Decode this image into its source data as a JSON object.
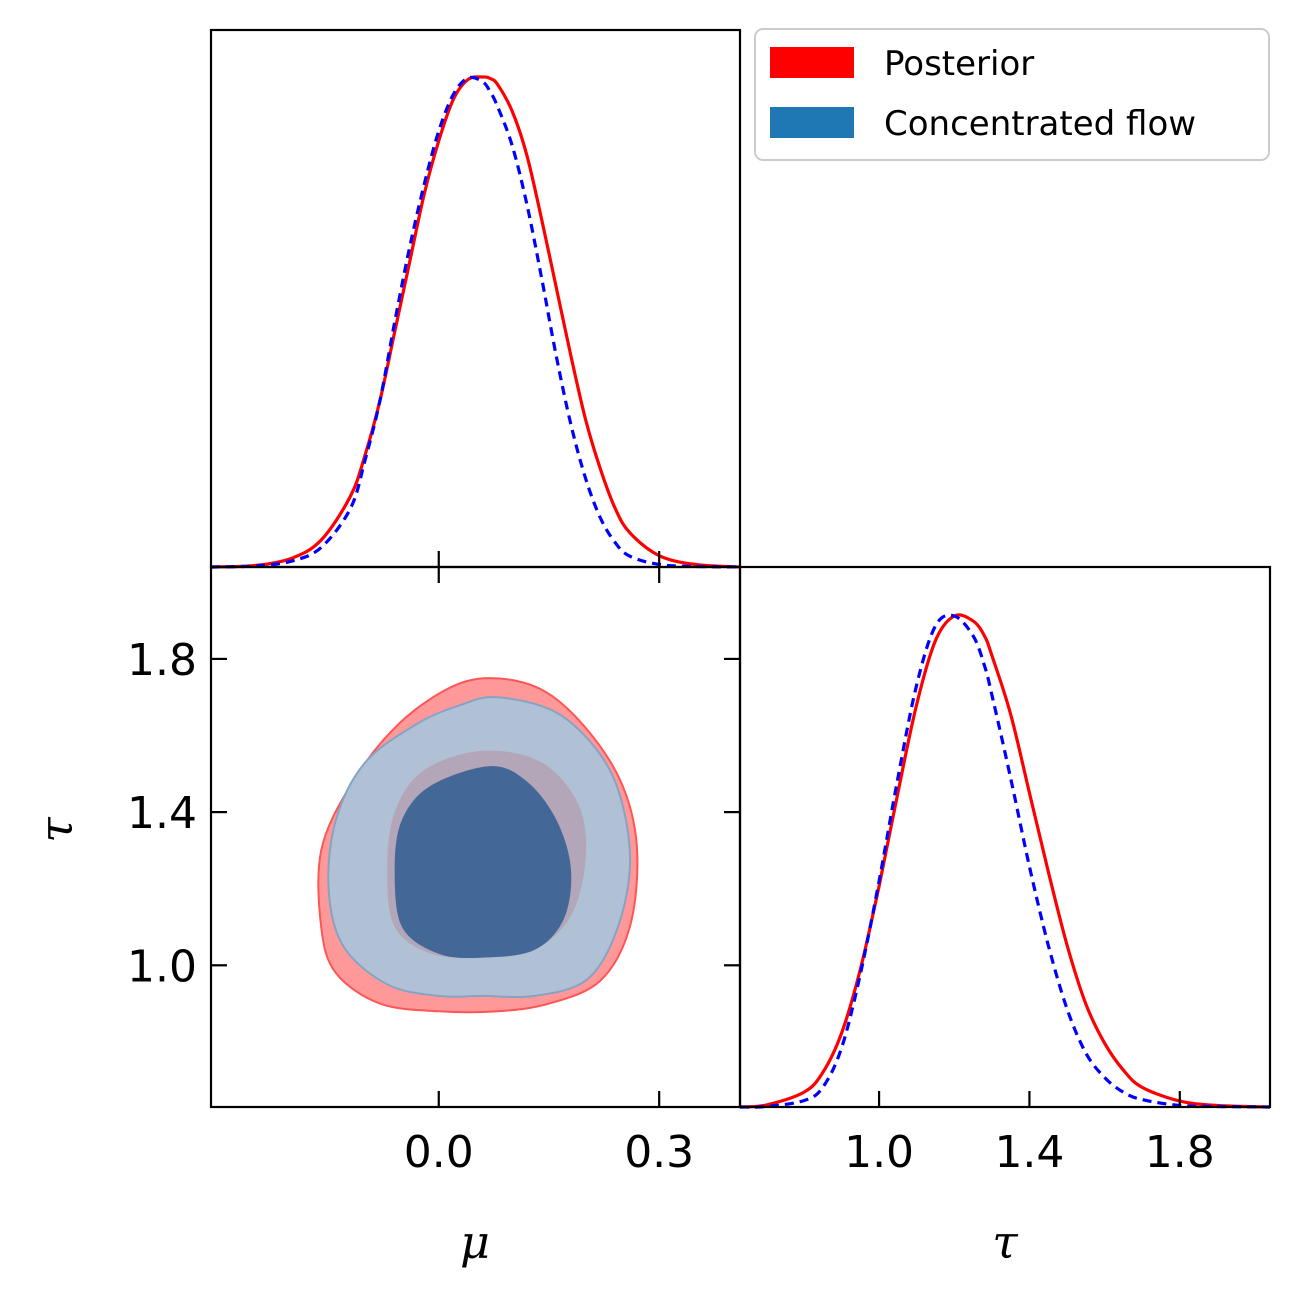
{
  "chart_data": {
    "type": "corner",
    "parameters": [
      {
        "symbol": "μ",
        "ticks": [
          0.0,
          0.3
        ],
        "tick_labels": [
          "0.0",
          "0.3"
        ],
        "range": [
          -0.31,
          0.41
        ]
      },
      {
        "symbol": "τ",
        "ticks": [
          1.0,
          1.4,
          1.8
        ],
        "tick_labels": [
          "1.0",
          "1.4",
          "1.8"
        ],
        "range": [
          0.63,
          2.04
        ]
      }
    ],
    "legend": {
      "placement": "top-right",
      "entries": [
        {
          "label": "Posterior",
          "color": "#ff0000"
        },
        {
          "label": "Concentrated flow",
          "color": "#1f77b4"
        }
      ]
    },
    "series": [
      {
        "key": "posterior",
        "line_style": "solid",
        "line_color": "#ff0000",
        "fill_outer": "#ff9999",
        "fill_inner": "#b3a6b8",
        "mu_marginal": {
          "x": [
            -0.31,
            -0.25,
            -0.2,
            -0.16,
            -0.12,
            -0.1,
            -0.08,
            -0.06,
            -0.04,
            -0.02,
            0.0,
            0.02,
            0.04,
            0.06,
            0.07,
            0.08,
            0.1,
            0.12,
            0.14,
            0.16,
            0.18,
            0.2,
            0.22,
            0.24,
            0.26,
            0.3,
            0.35,
            0.41
          ],
          "y": [
            0.0,
            0.003,
            0.018,
            0.055,
            0.145,
            0.23,
            0.34,
            0.48,
            0.62,
            0.76,
            0.87,
            0.955,
            0.995,
            1.0,
            0.997,
            0.985,
            0.93,
            0.84,
            0.71,
            0.57,
            0.43,
            0.3,
            0.2,
            0.12,
            0.07,
            0.023,
            0.005,
            0.0
          ]
        },
        "tau_marginal": {
          "x": [
            0.63,
            0.7,
            0.8,
            0.85,
            0.9,
            0.95,
            1.0,
            1.05,
            1.1,
            1.15,
            1.2,
            1.25,
            1.28,
            1.3,
            1.35,
            1.4,
            1.45,
            1.5,
            1.55,
            1.6,
            1.65,
            1.7,
            1.8,
            1.9,
            2.04
          ],
          "y": [
            0.0,
            0.004,
            0.03,
            0.07,
            0.15,
            0.28,
            0.45,
            0.64,
            0.82,
            0.95,
            1.0,
            0.99,
            0.96,
            0.92,
            0.8,
            0.64,
            0.48,
            0.33,
            0.21,
            0.13,
            0.075,
            0.04,
            0.012,
            0.003,
            0.0
          ]
        },
        "contours": [
          {
            "level": "outer",
            "points": [
              [
                0.07,
                1.75
              ],
              [
                0.14,
                1.72
              ],
              [
                0.2,
                1.62
              ],
              [
                0.25,
                1.47
              ],
              [
                0.27,
                1.3
              ],
              [
                0.26,
                1.1
              ],
              [
                0.22,
                0.96
              ],
              [
                0.15,
                0.9
              ],
              [
                0.08,
                0.88
              ],
              [
                0.0,
                0.88
              ],
              [
                -0.08,
                0.9
              ],
              [
                -0.14,
                0.98
              ],
              [
                -0.16,
                1.1
              ],
              [
                -0.16,
                1.3
              ],
              [
                -0.12,
                1.47
              ],
              [
                -0.06,
                1.62
              ],
              [
                0.01,
                1.72
              ]
            ]
          },
          {
            "level": "inner",
            "points": [
              [
                0.06,
                1.56
              ],
              [
                0.14,
                1.53
              ],
              [
                0.19,
                1.42
              ],
              [
                0.2,
                1.28
              ],
              [
                0.18,
                1.13
              ],
              [
                0.13,
                1.04
              ],
              [
                0.06,
                1.02
              ],
              [
                -0.01,
                1.03
              ],
              [
                -0.06,
                1.1
              ],
              [
                -0.07,
                1.25
              ],
              [
                -0.06,
                1.4
              ],
              [
                -0.02,
                1.51
              ]
            ]
          }
        ]
      },
      {
        "key": "flow",
        "line_style": "dashed",
        "line_color": "#0000ff",
        "fill_outer": "#b0c1d6",
        "fill_inner": "#436898",
        "mu_marginal": {
          "x": [
            -0.31,
            -0.25,
            -0.2,
            -0.16,
            -0.12,
            -0.1,
            -0.08,
            -0.06,
            -0.04,
            -0.02,
            0.0,
            0.02,
            0.04,
            0.06,
            0.07,
            0.08,
            0.1,
            0.12,
            0.14,
            0.16,
            0.18,
            0.2,
            0.22,
            0.24,
            0.26,
            0.3,
            0.35,
            0.41
          ],
          "y": [
            0.0,
            0.002,
            0.012,
            0.04,
            0.12,
            0.22,
            0.34,
            0.5,
            0.65,
            0.78,
            0.89,
            0.965,
            0.998,
            0.99,
            0.97,
            0.94,
            0.86,
            0.74,
            0.59,
            0.43,
            0.29,
            0.18,
            0.1,
            0.05,
            0.022,
            0.005,
            0.001,
            0.0
          ]
        },
        "tau_marginal": {
          "x": [
            0.63,
            0.7,
            0.8,
            0.85,
            0.9,
            0.95,
            1.0,
            1.05,
            1.1,
            1.15,
            1.2,
            1.25,
            1.28,
            1.3,
            1.35,
            1.4,
            1.45,
            1.5,
            1.55,
            1.6,
            1.65,
            1.7,
            1.8,
            1.9,
            2.04
          ],
          "y": [
            0.0,
            0.001,
            0.013,
            0.04,
            0.12,
            0.27,
            0.46,
            0.67,
            0.86,
            0.98,
            1.0,
            0.96,
            0.9,
            0.84,
            0.67,
            0.49,
            0.33,
            0.2,
            0.11,
            0.06,
            0.03,
            0.015,
            0.003,
            0.001,
            0.0
          ]
        },
        "contours": [
          {
            "level": "outer",
            "points": [
              [
                0.08,
                1.7
              ],
              [
                0.16,
                1.66
              ],
              [
                0.22,
                1.55
              ],
              [
                0.25,
                1.42
              ],
              [
                0.26,
                1.25
              ],
              [
                0.24,
                1.08
              ],
              [
                0.2,
                0.96
              ],
              [
                0.13,
                0.92
              ],
              [
                0.06,
                0.92
              ],
              [
                0.0,
                0.92
              ],
              [
                -0.07,
                0.95
              ],
              [
                -0.13,
                1.05
              ],
              [
                -0.15,
                1.2
              ],
              [
                -0.14,
                1.38
              ],
              [
                -0.1,
                1.53
              ],
              [
                -0.03,
                1.63
              ],
              [
                0.03,
                1.68
              ]
            ]
          },
          {
            "level": "inner",
            "points": [
              [
                0.07,
                1.52
              ],
              [
                0.12,
                1.48
              ],
              [
                0.16,
                1.38
              ],
              [
                0.18,
                1.25
              ],
              [
                0.17,
                1.12
              ],
              [
                0.13,
                1.04
              ],
              [
                0.06,
                1.02
              ],
              [
                0.0,
                1.03
              ],
              [
                -0.05,
                1.1
              ],
              [
                -0.06,
                1.25
              ],
              [
                -0.05,
                1.38
              ],
              [
                -0.01,
                1.47
              ]
            ]
          }
        ]
      }
    ]
  }
}
